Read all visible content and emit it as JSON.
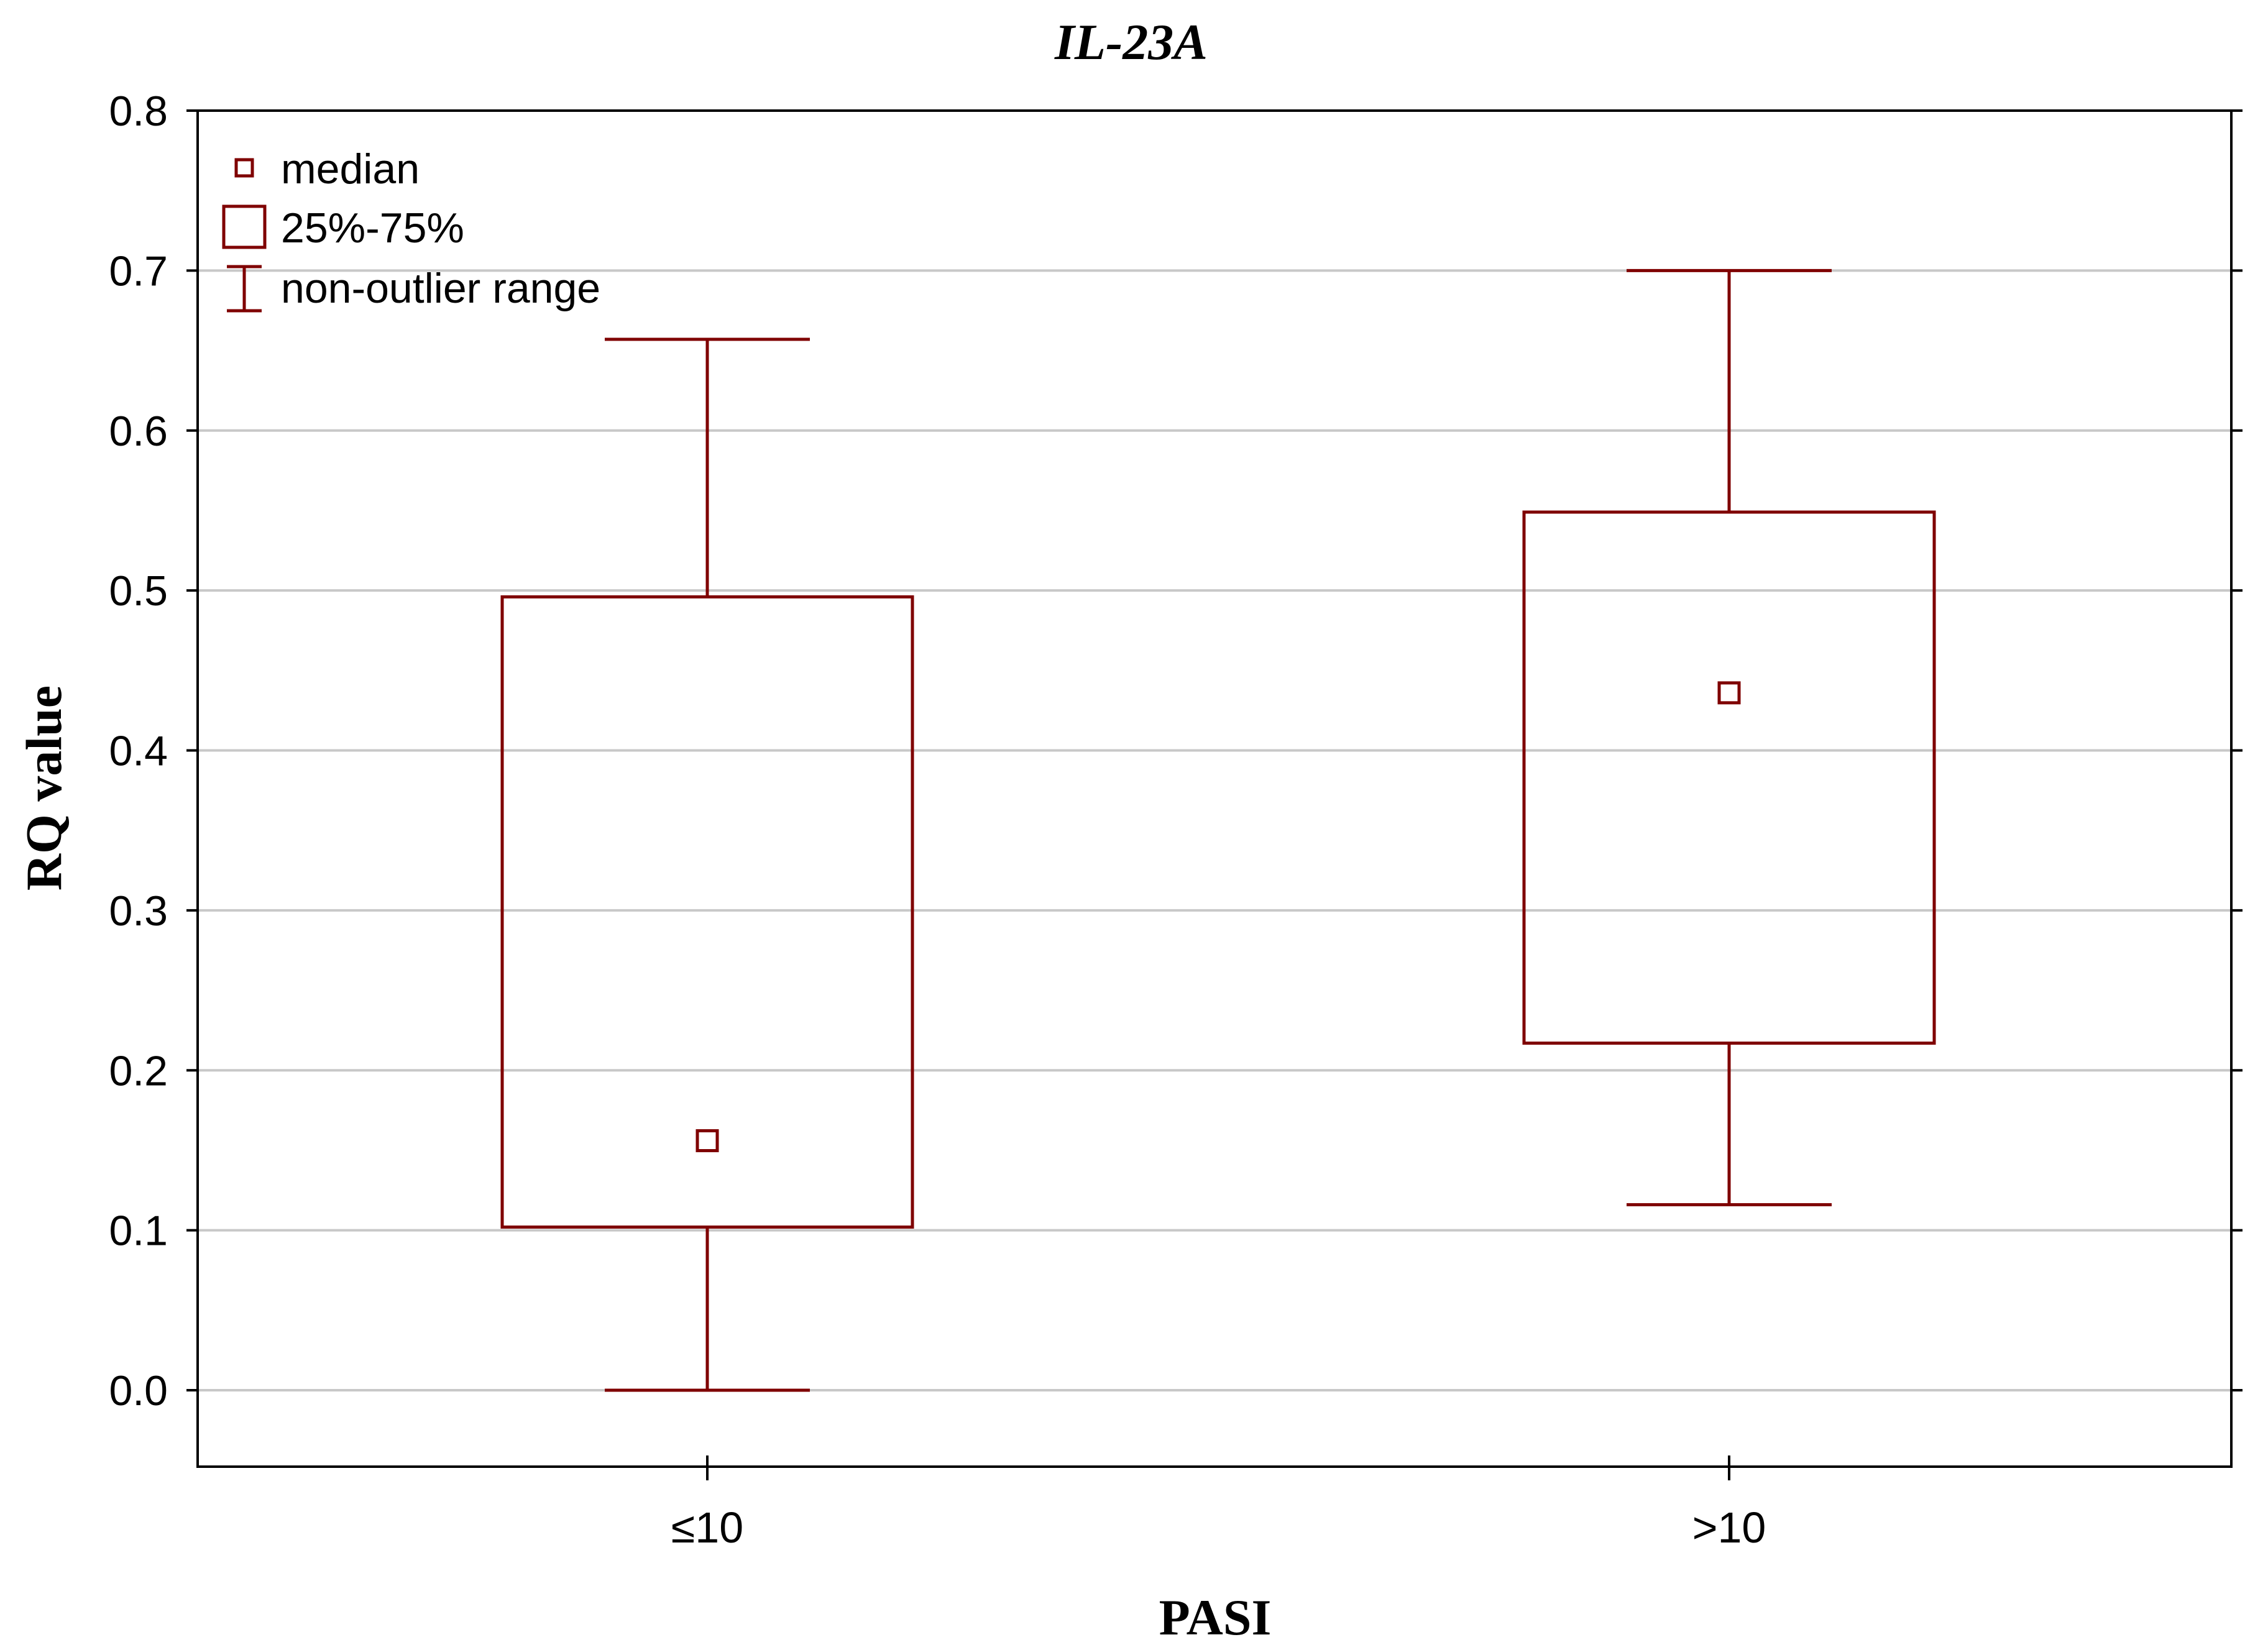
{
  "chart_data": {
    "type": "box",
    "title": "IL-23A",
    "xlabel": "PASI",
    "ylabel": "RQ value",
    "ylim": [
      -0.05,
      0.8
    ],
    "yticks": [
      "0.0",
      "0.1",
      "0.2",
      "0.3",
      "0.4",
      "0.5",
      "0.6",
      "0.7",
      "0.8"
    ],
    "grid": "horizontal",
    "legend_position": "top-left",
    "legend": [
      {
        "symbol": "median",
        "label": "median"
      },
      {
        "symbol": "box",
        "label": "25%-75%"
      },
      {
        "symbol": "whisker",
        "label": "non-outlier range"
      }
    ],
    "categories": [
      "≤10",
      ">10"
    ],
    "boxes": [
      {
        "category": "≤10",
        "whisker_low": 0.0,
        "q1": 0.102,
        "median": 0.156,
        "q3": 0.496,
        "whisker_high": 0.657
      },
      {
        "category": ">10",
        "whisker_low": 0.116,
        "q1": 0.217,
        "median": 0.436,
        "q3": 0.549,
        "whisker_high": 0.7
      }
    ],
    "colors": {
      "box": "#7f0000",
      "grid": "#c8c8c8",
      "axis": "#000000"
    }
  }
}
